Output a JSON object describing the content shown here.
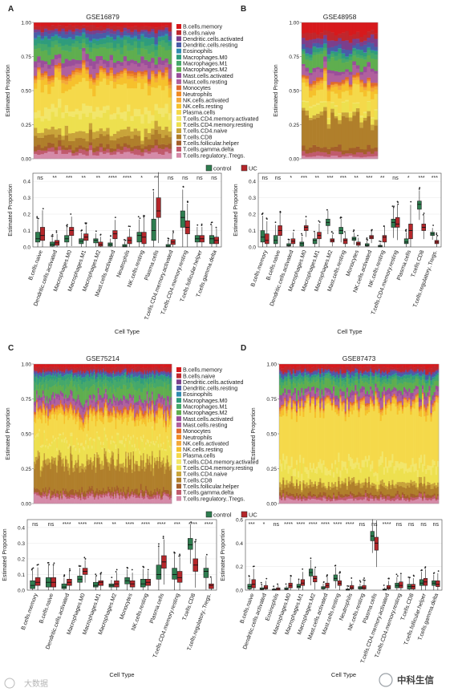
{
  "figure": {
    "watermark_left": "大数据",
    "watermark_right": "中科生信"
  },
  "cell_types_legend": [
    "B.cells.memory",
    "B.cells.naive",
    "Dendritic.cells.activated",
    "Dendritic.cells.resting",
    "Eosinophils",
    "Macrophages.M0",
    "Macrophages.M1",
    "Macrophages.M2",
    "Mast.cells.activated",
    "Mast.cells.resting",
    "Monocytes",
    "Neutrophils",
    "NK.cells.activated",
    "NK.cells.resting",
    "Plasma.cells",
    "T.cells.CD4.memory.activated",
    "T.cells.CD4.memory.resting",
    "T.cells.CD4.naive",
    "T.cells.CD8",
    "T.cells.follicular.helper",
    "T.cells.gamma.delta",
    "T.cells.regulatory..Tregs."
  ],
  "colors": {
    "cell_types": [
      "#d7191c",
      "#c0272d",
      "#7b3f8c",
      "#4a5ca8",
      "#2f8bb0",
      "#2f9c7c",
      "#45a86a",
      "#5fae4f",
      "#9a4e9a",
      "#b0609e",
      "#e06a2d",
      "#f08a24",
      "#f4a83a",
      "#f6c12c",
      "#f5d94a",
      "#f2e66b",
      "#ede04f",
      "#c9a43a",
      "#b07f2b",
      "#a45f2a",
      "#c05a6c",
      "#d58aa8"
    ],
    "control": "#2e7d4f",
    "uc": "#b5262a",
    "grid": "#ececec"
  },
  "chart_data": [
    {
      "panel": "A",
      "type": "area",
      "title": "GSE16879",
      "ylabel": "Estimated Proportion",
      "ylim": [
        0,
        1
      ],
      "yticks": [
        "0.00",
        "0.25",
        "0.50",
        "0.75",
        "1.00"
      ],
      "samples": 40,
      "mean_composition": [
        0.025,
        0.03,
        0.02,
        0.03,
        0.01,
        0.04,
        0.04,
        0.07,
        0.04,
        0.05,
        0.015,
        0.015,
        0.02,
        0.06,
        0.17,
        0.06,
        0.1,
        0.05,
        0.06,
        0.03,
        0.03,
        0.04
      ]
    },
    {
      "panel": "B",
      "type": "area",
      "title": "GSE48958",
      "ylabel": "Estimated Proportion",
      "ylim": [
        0,
        1
      ],
      "yticks": [
        "0.00",
        "0.25",
        "0.50",
        "0.75",
        "1.00"
      ],
      "samples": 21,
      "mean_composition": [
        0.08,
        0.05,
        0.05,
        0.04,
        0.005,
        0.03,
        0.03,
        0.09,
        0.03,
        0.06,
        0.02,
        0.01,
        0.02,
        0.05,
        0.12,
        0.01,
        0.06,
        0.03,
        0.22,
        0.04,
        0.03,
        0.02
      ]
    },
    {
      "panel": "A",
      "type": "box",
      "ylabel": "Estimated Proportion",
      "xlabel": "Cell Type",
      "ylim": [
        0,
        0.45
      ],
      "yticks": [
        "0.0",
        "0.1",
        "0.2",
        "0.3",
        "0.4"
      ],
      "legend": [
        "control",
        "UC"
      ],
      "categories": [
        "B.cells.naive",
        "Dendritic.cells.activated",
        "Macrophages.M0",
        "Macrophages.M1",
        "Macrophages.M2",
        "Mast.cells.activated",
        "Neutrophils",
        "NK.cells.resting",
        "Plasma.cells",
        "T.cells.CD4.memory.activated",
        "T.cells.CD4.memory.resting",
        "T.cells.follicular.helper",
        "T.cells.gamma.delta"
      ],
      "significance": [
        "ns",
        "**",
        "***",
        "**",
        "**",
        "****",
        "****",
        "*",
        "**",
        "ns",
        "ns",
        "ns",
        "ns"
      ],
      "control": [
        [
          0.03,
          0.05,
          0.09
        ],
        [
          0.005,
          0.015,
          0.03
        ],
        [
          0.03,
          0.05,
          0.07
        ],
        [
          0.02,
          0.035,
          0.05
        ],
        [
          0.025,
          0.04,
          0.05
        ],
        [
          0.005,
          0.015,
          0.025
        ],
        [
          0.0,
          0.005,
          0.015
        ],
        [
          0.03,
          0.07,
          0.09
        ],
        [
          0.04,
          0.1,
          0.17
        ],
        [
          0.0,
          0.005,
          0.015
        ],
        [
          0.12,
          0.18,
          0.22
        ],
        [
          0.03,
          0.05,
          0.07
        ],
        [
          0.02,
          0.05,
          0.07
        ]
      ],
      "uc": [
        [
          0.04,
          0.07,
          0.12
        ],
        [
          0.01,
          0.025,
          0.04
        ],
        [
          0.07,
          0.1,
          0.12
        ],
        [
          0.04,
          0.06,
          0.08
        ],
        [
          0.005,
          0.015,
          0.03
        ],
        [
          0.05,
          0.08,
          0.1
        ],
        [
          0.02,
          0.04,
          0.06
        ],
        [
          0.02,
          0.06,
          0.09
        ],
        [
          0.18,
          0.22,
          0.3
        ],
        [
          0.015,
          0.03,
          0.045
        ],
        [
          0.08,
          0.12,
          0.16
        ],
        [
          0.03,
          0.05,
          0.07
        ],
        [
          0.02,
          0.04,
          0.06
        ]
      ]
    },
    {
      "panel": "B",
      "type": "box",
      "ylabel": "Estimated Proportion",
      "xlabel": "Cell Type",
      "ylim": [
        0,
        0.45
      ],
      "yticks": [
        "0.0",
        "0.1",
        "0.2",
        "0.3",
        "0.4"
      ],
      "categories": [
        "B.cells.memory",
        "B.cells.naive",
        "Dendritic.cells.activated",
        "Macrophages.M0",
        "Macrophages.M1",
        "Macrophages.M2",
        "Mast.cells.resting",
        "Monocytes",
        "NK.cells.activated",
        "NK.cells.resting",
        "T.cells.CD4.memory.resting",
        "Plasma.cells",
        "T.cells.CD8",
        "T.cells.regulatory..Tregs."
      ],
      "significance": [
        "ns",
        "ns",
        "*",
        "***",
        "**",
        "***",
        "***",
        "**",
        "***",
        "**",
        "ns",
        "*",
        "***",
        "***"
      ],
      "control": [
        [
          0.03,
          0.06,
          0.1
        ],
        [
          0.02,
          0.04,
          0.07
        ],
        [
          0.005,
          0.01,
          0.02
        ],
        [
          0.005,
          0.02,
          0.03
        ],
        [
          0.02,
          0.04,
          0.05
        ],
        [
          0.13,
          0.15,
          0.17
        ],
        [
          0.08,
          0.1,
          0.12
        ],
        [
          0.04,
          0.05,
          0.06
        ],
        [
          0.005,
          0.01,
          0.02
        ],
        [
          0.0,
          0.005,
          0.01
        ],
        [
          0.12,
          0.15,
          0.17
        ],
        [
          0.02,
          0.03,
          0.05
        ],
        [
          0.23,
          0.26,
          0.28
        ],
        [
          0.07,
          0.08,
          0.09
        ]
      ],
      "uc": [
        [
          0.02,
          0.04,
          0.08
        ],
        [
          0.07,
          0.1,
          0.13
        ],
        [
          0.02,
          0.035,
          0.05
        ],
        [
          0.1,
          0.12,
          0.13
        ],
        [
          0.05,
          0.07,
          0.09
        ],
        [
          0.03,
          0.04,
          0.05
        ],
        [
          0.02,
          0.04,
          0.05
        ],
        [
          0.01,
          0.02,
          0.03
        ],
        [
          0.05,
          0.06,
          0.07
        ],
        [
          0.03,
          0.06,
          0.07
        ],
        [
          0.12,
          0.14,
          0.18
        ],
        [
          0.05,
          0.1,
          0.14
        ],
        [
          0.1,
          0.12,
          0.14
        ],
        [
          0.02,
          0.03,
          0.04
        ]
      ]
    },
    {
      "panel": "C",
      "type": "area",
      "title": "GSE75214",
      "ylabel": "Estimated Proportion",
      "ylim": [
        0,
        1
      ],
      "yticks": [
        "0.00",
        "0.25",
        "0.50",
        "0.75",
        "1.00"
      ],
      "samples": 110,
      "mean_composition": [
        0.02,
        0.03,
        0.01,
        0.02,
        0.005,
        0.03,
        0.05,
        0.08,
        0.03,
        0.05,
        0.02,
        0.01,
        0.015,
        0.04,
        0.15,
        0.02,
        0.12,
        0.04,
        0.2,
        0.03,
        0.02,
        0.05
      ]
    },
    {
      "panel": "D",
      "type": "area",
      "title": "GSE87473",
      "ylabel": "Estimated Proportion",
      "ylim": [
        0,
        1
      ],
      "yticks": [
        "0.00",
        "0.25",
        "0.50",
        "0.75",
        "1.00"
      ],
      "samples": 95,
      "mean_composition": [
        0.02,
        0.03,
        0.01,
        0.02,
        0.005,
        0.02,
        0.03,
        0.06,
        0.03,
        0.04,
        0.01,
        0.01,
        0.015,
        0.03,
        0.4,
        0.05,
        0.09,
        0.03,
        0.06,
        0.02,
        0.02,
        0.03
      ]
    },
    {
      "panel": "C",
      "type": "box",
      "ylabel": "Estimated Proportion",
      "xlabel": "Cell Type",
      "ylim": [
        0,
        0.45
      ],
      "yticks": [
        "0.0",
        "0.1",
        "0.2",
        "0.3",
        "0.4"
      ],
      "legend": [
        "control",
        "UC"
      ],
      "categories": [
        "B.cells.memory",
        "B.cells.naive",
        "Dendritic.cells.activated",
        "Macrophages.M0",
        "Macrophages.M1",
        "Macrophages.M2",
        "Monocytes",
        "NK.cells.resting",
        "Plasma.cells",
        "T.cells.CD4.memory.resting",
        "T.cells.CD8",
        "T.cells.regulatory..Tregs."
      ],
      "significance": [
        "ns",
        "ns",
        "****",
        "****",
        "****",
        "**",
        "****",
        "****",
        "****",
        "***",
        "****",
        "****"
      ],
      "control": [
        [
          0.01,
          0.03,
          0.06
        ],
        [
          0.02,
          0.05,
          0.08
        ],
        [
          0.01,
          0.02,
          0.04
        ],
        [
          0.05,
          0.07,
          0.09
        ],
        [
          0.02,
          0.03,
          0.05
        ],
        [
          0.02,
          0.03,
          0.04
        ],
        [
          0.04,
          0.06,
          0.08
        ],
        [
          0.02,
          0.04,
          0.07
        ],
        [
          0.07,
          0.1,
          0.16
        ],
        [
          0.07,
          0.1,
          0.14
        ],
        [
          0.26,
          0.29,
          0.33
        ],
        [
          0.08,
          0.12,
          0.14
        ]
      ],
      "uc": [
        [
          0.03,
          0.05,
          0.08
        ],
        [
          0.02,
          0.05,
          0.08
        ],
        [
          0.03,
          0.05,
          0.07
        ],
        [
          0.1,
          0.12,
          0.14
        ],
        [
          0.03,
          0.05,
          0.06
        ],
        [
          0.02,
          0.04,
          0.06
        ],
        [
          0.02,
          0.04,
          0.06
        ],
        [
          0.03,
          0.05,
          0.07
        ],
        [
          0.14,
          0.18,
          0.22
        ],
        [
          0.05,
          0.08,
          0.12
        ],
        [
          0.12,
          0.16,
          0.2
        ],
        [
          0.01,
          0.03,
          0.04
        ]
      ]
    },
    {
      "panel": "D",
      "type": "box",
      "ylabel": "Estimated Proportion",
      "xlabel": "Cell Type",
      "ylim": [
        0,
        0.6
      ],
      "yticks": [
        "0.0",
        "0.2",
        "0.4",
        "0.6"
      ],
      "categories": [
        "B.cells.naive",
        "Dendritic.cells.activated",
        "Eosinophils",
        "Macrophages.M0",
        "Macrophages.M1",
        "Macrophages.M2",
        "Mast.cells.activated",
        "Mast.cells.resting",
        "Neutrophils",
        "NK.cells.resting",
        "Plasma.cells",
        "T.cells.CD4.memory.activated",
        "T.cells.CD4.memory.resting",
        "T.cells.CD8",
        "T.cells.follicular.helper",
        "T.cells.gamma.delta"
      ],
      "significance": [
        "***",
        "*",
        "ns",
        "****",
        "****",
        "****",
        "****",
        "****",
        "****",
        "ns",
        "ns",
        "****",
        "ns",
        "ns",
        "ns",
        "ns"
      ],
      "control": [
        [
          0.01,
          0.03,
          0.05
        ],
        [
          0.005,
          0.01,
          0.02
        ],
        [
          0.0,
          0.005,
          0.01
        ],
        [
          0.005,
          0.01,
          0.02
        ],
        [
          0.02,
          0.03,
          0.05
        ],
        [
          0.12,
          0.15,
          0.18
        ],
        [
          0.01,
          0.02,
          0.03
        ],
        [
          0.08,
          0.1,
          0.13
        ],
        [
          0.0,
          0.005,
          0.01
        ],
        [
          0.01,
          0.02,
          0.03
        ],
        [
          0.42,
          0.46,
          0.5
        ],
        [
          0.0,
          0.005,
          0.01
        ],
        [
          0.02,
          0.04,
          0.06
        ],
        [
          0.01,
          0.03,
          0.05
        ],
        [
          0.04,
          0.06,
          0.09
        ],
        [
          0.04,
          0.06,
          0.08
        ]
      ],
      "uc": [
        [
          0.02,
          0.05,
          0.09
        ],
        [
          0.01,
          0.02,
          0.04
        ],
        [
          0.0,
          0.01,
          0.02
        ],
        [
          0.02,
          0.04,
          0.06
        ],
        [
          0.04,
          0.06,
          0.09
        ],
        [
          0.07,
          0.1,
          0.12
        ],
        [
          0.02,
          0.04,
          0.06
        ],
        [
          0.04,
          0.06,
          0.08
        ],
        [
          0.01,
          0.02,
          0.04
        ],
        [
          0.01,
          0.02,
          0.04
        ],
        [
          0.34,
          0.4,
          0.45
        ],
        [
          0.01,
          0.02,
          0.04
        ],
        [
          0.02,
          0.04,
          0.07
        ],
        [
          0.01,
          0.03,
          0.05
        ],
        [
          0.04,
          0.07,
          0.1
        ],
        [
          0.03,
          0.05,
          0.08
        ]
      ]
    }
  ]
}
